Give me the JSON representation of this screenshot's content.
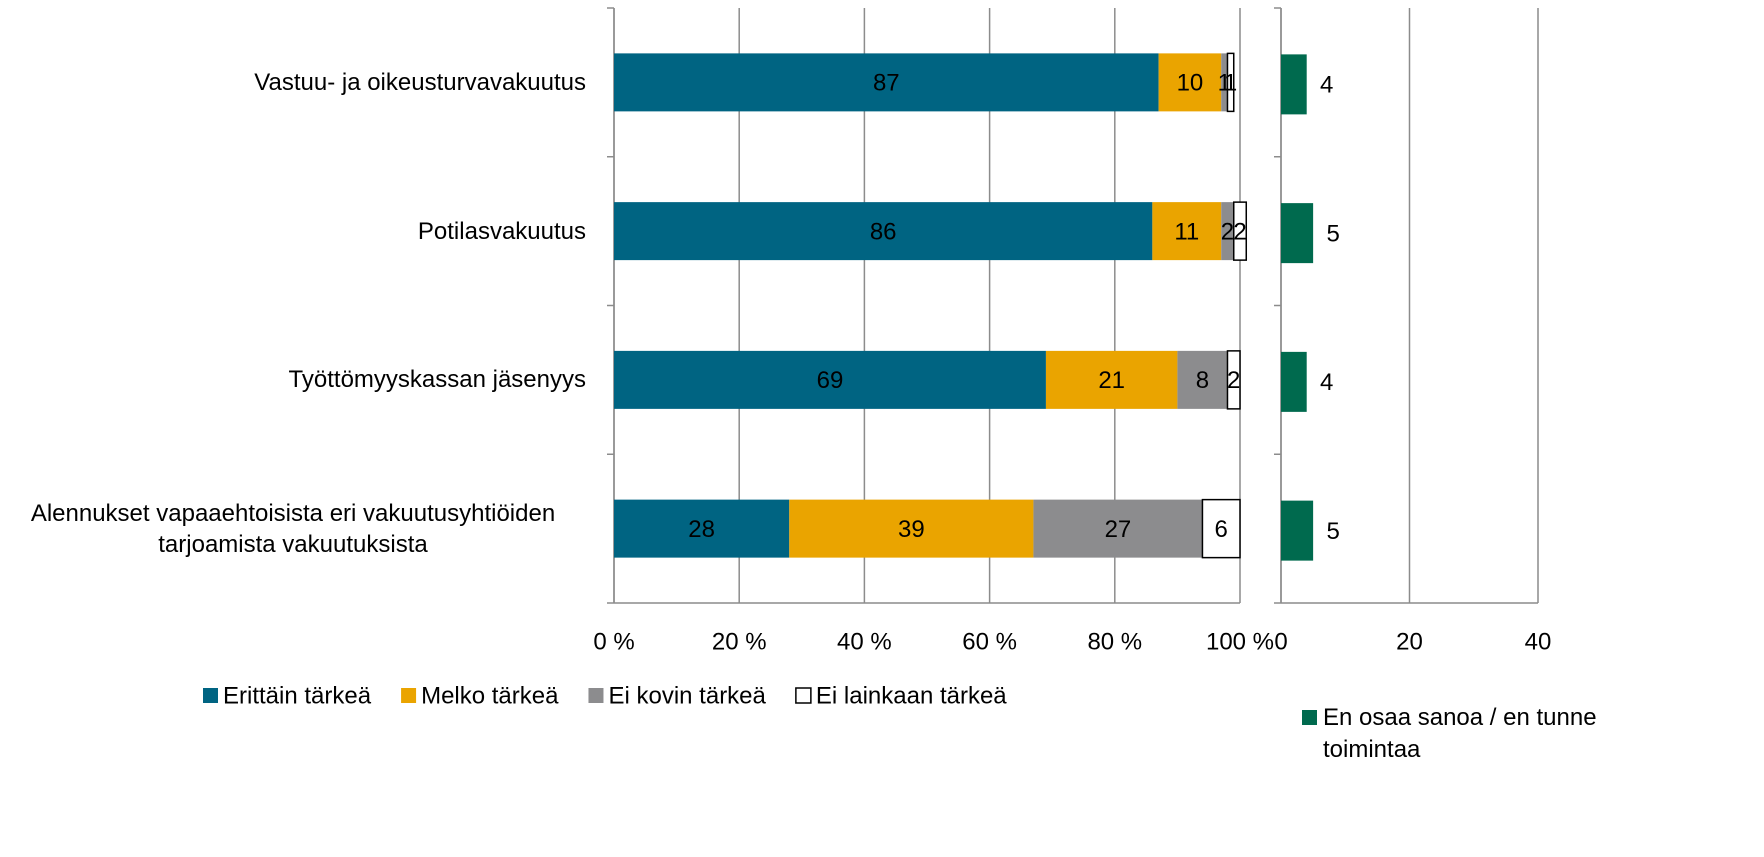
{
  "chart_data": [
    {
      "type": "stacked-bar-horizontal",
      "categories": [
        "Vastuu- ja oikeusturvavakuutus",
        "Potilasvakuutus",
        "Työttömyyskassan jäsenyys",
        "Alennukset vapaaehtoisista eri vakuutusyhtiöiden tarjoamista vakuutuksista"
      ],
      "series": [
        {
          "name": "Erittäin tärkeä",
          "color": "#006482",
          "values": [
            87,
            86,
            69,
            28
          ]
        },
        {
          "name": "Melko tärkeä",
          "color": "#eaa400",
          "values": [
            10,
            11,
            21,
            39
          ]
        },
        {
          "name": "Ei kovin tärkeä",
          "color": "#8c8c8e",
          "values": [
            1,
            2,
            8,
            27
          ]
        },
        {
          "name": "Ei lainkaan tärkeä",
          "color": "#ffffff",
          "values": [
            1,
            2,
            2,
            6
          ]
        }
      ],
      "xlim": [
        0,
        100
      ],
      "xticks": [
        {
          "value": 0,
          "label": "0 %"
        },
        {
          "value": 20,
          "label": "20 %"
        },
        {
          "value": 40,
          "label": "40 %"
        },
        {
          "value": 60,
          "label": "60 %"
        },
        {
          "value": 80,
          "label": "80 %"
        },
        {
          "value": 100,
          "label": "100 %"
        }
      ],
      "grid": true,
      "legend": "bottom"
    },
    {
      "type": "bar-horizontal",
      "series": [
        {
          "name": "En osaa sanoa / en tunne toimintaa",
          "color": "#006a4e",
          "values": [
            4,
            5,
            4,
            5
          ]
        }
      ],
      "xlim": [
        0,
        40
      ],
      "xticks": [
        0,
        20,
        40
      ],
      "grid": true,
      "legend": "bottom"
    }
  ]
}
